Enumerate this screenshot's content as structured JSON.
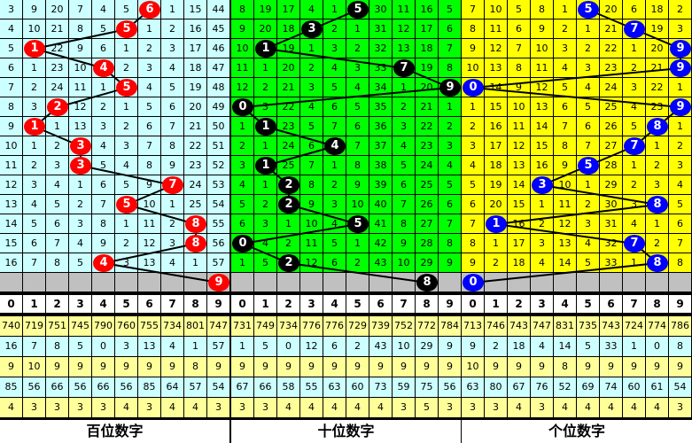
{
  "chart_data": {
    "type": "table",
    "colors": {
      "hundreds_bg": "#ccffff",
      "tens_bg": "#00ff00",
      "units_bg": "#ffff00",
      "hundreds_ball": "#ff0000",
      "tens_ball": "#000000",
      "units_ball": "#0000ff",
      "empty_row": "#c0c0c0",
      "stat_yellow": "#ffff99",
      "stat_cyan": "#ccffff"
    },
    "digits": [
      "0",
      "1",
      "2",
      "3",
      "4",
      "5",
      "6",
      "7",
      "8",
      "9"
    ],
    "panels": [
      {
        "label": "百位数字",
        "balls": [
          6,
          5,
          1,
          4,
          5,
          2,
          1,
          3,
          3,
          7,
          5,
          8,
          8,
          4,
          9
        ],
        "rows": [
          [
            3,
            9,
            20,
            7,
            4,
            5,
            6,
            1,
            15,
            44
          ],
          [
            4,
            10,
            21,
            8,
            5,
            5,
            1,
            2,
            16,
            45
          ],
          [
            5,
            1,
            22,
            9,
            6,
            1,
            2,
            3,
            17,
            46
          ],
          [
            6,
            1,
            23,
            10,
            4,
            2,
            3,
            4,
            18,
            47
          ],
          [
            7,
            2,
            24,
            11,
            1,
            5,
            4,
            5,
            19,
            48
          ],
          [
            8,
            3,
            2,
            12,
            2,
            1,
            5,
            6,
            20,
            49
          ],
          [
            9,
            1,
            1,
            13,
            3,
            2,
            6,
            7,
            21,
            50
          ],
          [
            10,
            1,
            2,
            3,
            4,
            3,
            7,
            8,
            22,
            51
          ],
          [
            11,
            2,
            3,
            3,
            5,
            4,
            8,
            9,
            23,
            52
          ],
          [
            12,
            3,
            4,
            1,
            6,
            5,
            9,
            7,
            24,
            53
          ],
          [
            13,
            4,
            5,
            2,
            7,
            5,
            10,
            1,
            25,
            54
          ],
          [
            14,
            5,
            6,
            3,
            8,
            1,
            11,
            2,
            8,
            55
          ],
          [
            15,
            6,
            7,
            4,
            9,
            2,
            12,
            3,
            8,
            56
          ],
          [
            16,
            7,
            8,
            5,
            4,
            3,
            13,
            4,
            1,
            57
          ]
        ],
        "stats": [
          [
            740,
            719,
            751,
            745,
            790,
            760,
            755,
            734,
            801,
            747
          ],
          [
            16,
            7,
            8,
            5,
            0,
            3,
            13,
            4,
            1,
            57
          ],
          [
            9,
            10,
            9,
            9,
            9,
            9,
            9,
            9,
            8,
            9
          ],
          [
            85,
            56,
            66,
            56,
            66,
            56,
            85,
            64,
            57,
            54
          ],
          [
            4,
            3,
            3,
            3,
            3,
            4,
            3,
            4,
            4,
            3
          ]
        ]
      },
      {
        "label": "十位数字",
        "balls": [
          5,
          3,
          1,
          7,
          9,
          0,
          1,
          4,
          1,
          2,
          2,
          5,
          0,
          2,
          8
        ],
        "rows": [
          [
            8,
            19,
            17,
            4,
            1,
            5,
            30,
            11,
            16,
            5
          ],
          [
            9,
            20,
            18,
            3,
            2,
            1,
            31,
            12,
            17,
            6
          ],
          [
            10,
            1,
            19,
            1,
            3,
            2,
            32,
            13,
            18,
            7
          ],
          [
            11,
            1,
            20,
            2,
            4,
            3,
            33,
            7,
            19,
            8
          ],
          [
            12,
            2,
            21,
            3,
            5,
            4,
            34,
            1,
            20,
            9
          ],
          [
            0,
            3,
            22,
            4,
            6,
            5,
            35,
            2,
            21,
            1
          ],
          [
            1,
            1,
            23,
            5,
            7,
            6,
            36,
            3,
            22,
            2
          ],
          [
            2,
            1,
            24,
            6,
            4,
            7,
            37,
            4,
            23,
            3
          ],
          [
            3,
            1,
            25,
            7,
            1,
            8,
            38,
            5,
            24,
            4
          ],
          [
            4,
            1,
            2,
            8,
            2,
            9,
            39,
            6,
            25,
            5
          ],
          [
            5,
            2,
            2,
            9,
            3,
            10,
            40,
            7,
            26,
            6
          ],
          [
            6,
            3,
            1,
            10,
            4,
            5,
            41,
            8,
            27,
            7
          ],
          [
            0,
            4,
            2,
            11,
            5,
            1,
            42,
            9,
            28,
            8
          ],
          [
            1,
            5,
            2,
            12,
            6,
            2,
            43,
            10,
            29,
            9
          ]
        ],
        "stats": [
          [
            731,
            749,
            734,
            776,
            776,
            729,
            739,
            752,
            772,
            784
          ],
          [
            1,
            5,
            0,
            12,
            6,
            2,
            43,
            10,
            29,
            9
          ],
          [
            9,
            9,
            9,
            9,
            9,
            9,
            9,
            9,
            9,
            9
          ],
          [
            67,
            66,
            58,
            55,
            63,
            60,
            73,
            59,
            75,
            56
          ],
          [
            3,
            3,
            4,
            4,
            4,
            4,
            4,
            3,
            5,
            3
          ]
        ]
      },
      {
        "label": "个位数字",
        "balls": [
          5,
          7,
          9,
          9,
          0,
          9,
          8,
          7,
          5,
          3,
          8,
          1,
          7,
          8,
          0
        ],
        "rows": [
          [
            7,
            10,
            5,
            8,
            1,
            5,
            20,
            6,
            18,
            2
          ],
          [
            8,
            11,
            6,
            9,
            2,
            1,
            21,
            7,
            19,
            3
          ],
          [
            9,
            12,
            7,
            10,
            3,
            2,
            22,
            1,
            20,
            9
          ],
          [
            10,
            13,
            8,
            11,
            4,
            3,
            23,
            2,
            21,
            9
          ],
          [
            0,
            14,
            9,
            12,
            5,
            4,
            24,
            3,
            22,
            1
          ],
          [
            1,
            15,
            10,
            13,
            6,
            5,
            25,
            4,
            23,
            9
          ],
          [
            2,
            16,
            11,
            14,
            7,
            6,
            26,
            5,
            8,
            1
          ],
          [
            3,
            17,
            12,
            15,
            8,
            7,
            27,
            7,
            1,
            2
          ],
          [
            4,
            18,
            13,
            16,
            9,
            5,
            28,
            1,
            2,
            3
          ],
          [
            5,
            19,
            14,
            3,
            10,
            1,
            29,
            2,
            3,
            4
          ],
          [
            6,
            20,
            15,
            1,
            11,
            2,
            30,
            3,
            8,
            5
          ],
          [
            7,
            1,
            16,
            2,
            12,
            3,
            31,
            4,
            1,
            6
          ],
          [
            8,
            1,
            17,
            3,
            13,
            4,
            32,
            7,
            2,
            7
          ],
          [
            9,
            2,
            18,
            4,
            14,
            5,
            33,
            1,
            8,
            8
          ]
        ],
        "stats": [
          [
            713,
            746,
            743,
            747,
            831,
            735,
            743,
            724,
            774,
            786
          ],
          [
            9,
            2,
            18,
            4,
            14,
            5,
            33,
            1,
            0,
            8
          ],
          [
            10,
            9,
            9,
            9,
            8,
            9,
            9,
            9,
            9,
            9
          ],
          [
            63,
            80,
            67,
            76,
            52,
            69,
            74,
            60,
            61,
            54
          ],
          [
            3,
            3,
            4,
            3,
            4,
            4,
            4,
            4,
            4,
            3
          ]
        ]
      }
    ]
  }
}
